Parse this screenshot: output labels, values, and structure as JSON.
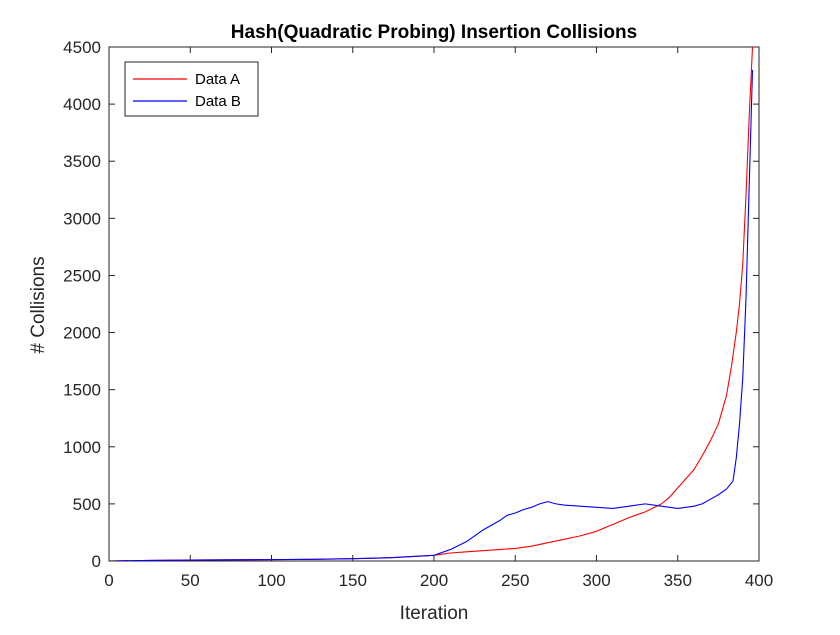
{
  "chart_data": {
    "type": "line",
    "title": "Hash(Quadratic Probing) Insertion Collisions",
    "xlabel": "Iteration",
    "ylabel": "# Collisions",
    "xlim": [
      0,
      400
    ],
    "ylim": [
      0,
      4500
    ],
    "xticks": [
      "0",
      "50",
      "100",
      "150",
      "200",
      "250",
      "300",
      "350",
      "400"
    ],
    "yticks": [
      "0",
      "500",
      "1000",
      "1500",
      "2000",
      "2500",
      "3000",
      "3500",
      "4000",
      "4500"
    ],
    "grid": false,
    "legend": "top-left",
    "series": [
      {
        "name": "Data A",
        "color": "#ff0000",
        "x": [
          0,
          25,
          50,
          75,
          100,
          125,
          150,
          175,
          200,
          210,
          220,
          230,
          240,
          250,
          260,
          270,
          280,
          290,
          300,
          310,
          320,
          330,
          340,
          345,
          350,
          355,
          360,
          365,
          370,
          375,
          380,
          383,
          386,
          388,
          390,
          392,
          394,
          396
        ],
        "y": [
          0,
          5,
          8,
          10,
          12,
          15,
          20,
          30,
          50,
          70,
          80,
          90,
          100,
          110,
          130,
          160,
          190,
          220,
          260,
          320,
          380,
          430,
          500,
          560,
          640,
          720,
          800,
          920,
          1050,
          1200,
          1450,
          1700,
          2000,
          2250,
          2600,
          3200,
          3900,
          4500
        ]
      },
      {
        "name": "Data B",
        "color": "#0000ff",
        "x": [
          0,
          25,
          50,
          75,
          100,
          125,
          150,
          175,
          200,
          210,
          220,
          230,
          240,
          245,
          250,
          255,
          260,
          265,
          270,
          275,
          280,
          290,
          300,
          310,
          320,
          330,
          340,
          345,
          350,
          355,
          360,
          365,
          370,
          375,
          380,
          384,
          386,
          388,
          390,
          392,
          394,
          396
        ],
        "y": [
          0,
          5,
          8,
          10,
          12,
          15,
          20,
          30,
          50,
          100,
          170,
          270,
          350,
          400,
          420,
          450,
          470,
          500,
          520,
          500,
          490,
          480,
          470,
          460,
          480,
          500,
          480,
          470,
          460,
          470,
          480,
          500,
          540,
          580,
          630,
          700,
          900,
          1200,
          1600,
          2300,
          3300,
          4300
        ]
      }
    ]
  }
}
